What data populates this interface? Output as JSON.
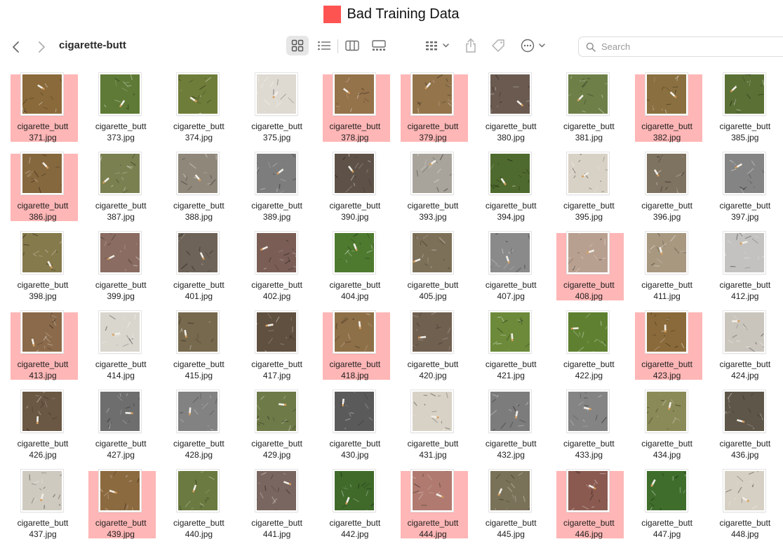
{
  "legend": {
    "label": "Bad Training Data",
    "color": "#fd5452"
  },
  "window": {
    "folder_title": "cigarette-butt",
    "search_placeholder": "Search"
  },
  "toolbar_icons": {
    "back": "chevron-left-icon",
    "forward": "chevron-right-icon",
    "icon_view": "grid-view-icon",
    "list_view": "list-view-icon",
    "column_view": "column-view-icon",
    "gallery_view": "gallery-view-icon",
    "group": "group-icon",
    "share": "share-icon",
    "tag": "tag-icon",
    "more": "ellipsis-icon"
  },
  "colors": {
    "grass": "#5e7a36",
    "dry_grass": "#8f7845",
    "concrete": "#dcd8cf",
    "asphalt": "#7c7c7c",
    "brick": "#8a5c55",
    "dirt": "#8b7a64",
    "gravel": "#7e7260"
  },
  "files": [
    {
      "line1": "cigarette_butt",
      "line2": "371.jpg",
      "bg": "#8a6a3a",
      "bad": true
    },
    {
      "line1": "cigarette_butt",
      "line2": "373.jpg",
      "bg": "#5e7a36",
      "bad": false
    },
    {
      "line1": "cigarette_butt",
      "line2": "374.jpg",
      "bg": "#6f7d3a",
      "bad": false
    },
    {
      "line1": "cigarette_butt",
      "line2": "375.jpg",
      "bg": "#dedad2",
      "bad": false
    },
    {
      "line1": "cigarette_butt",
      "line2": "378.jpg",
      "bg": "#94724a",
      "bad": true
    },
    {
      "line1": "cigarette_butt",
      "line2": "379.jpg",
      "bg": "#93744b",
      "bad": true
    },
    {
      "line1": "cigarette_butt",
      "line2": "380.jpg",
      "bg": "#6a5a50",
      "bad": false
    },
    {
      "line1": "cigarette_butt",
      "line2": "381.jpg",
      "bg": "#6e8048",
      "bad": false
    },
    {
      "line1": "cigarette_butt",
      "line2": "382.jpg",
      "bg": "#8a7040",
      "bad": true
    },
    {
      "line1": "cigarette_butt",
      "line2": "385.jpg",
      "bg": "#5b7035",
      "bad": false
    },
    {
      "line1": "cigarette_butt",
      "line2": "386.jpg",
      "bg": "#86683e",
      "bad": true
    },
    {
      "line1": "cigarette_butt",
      "line2": "387.jpg",
      "bg": "#7a8050",
      "bad": false
    },
    {
      "line1": "cigarette_butt",
      "line2": "388.jpg",
      "bg": "#8f877a",
      "bad": false
    },
    {
      "line1": "cigarette_butt",
      "line2": "389.jpg",
      "bg": "#7d7d7d",
      "bad": false
    },
    {
      "line1": "cigarette_butt",
      "line2": "390.jpg",
      "bg": "#5e5248",
      "bad": false
    },
    {
      "line1": "cigarette_butt",
      "line2": "393.jpg",
      "bg": "#a8a49c",
      "bad": false
    },
    {
      "line1": "cigarette_butt",
      "line2": "394.jpg",
      "bg": "#4f6a2e",
      "bad": false
    },
    {
      "line1": "cigarette_butt",
      "line2": "395.jpg",
      "bg": "#d8d2c6",
      "bad": false
    },
    {
      "line1": "cigarette_butt",
      "line2": "396.jpg",
      "bg": "#7e7260",
      "bad": false
    },
    {
      "line1": "cigarette_butt",
      "line2": "397.jpg",
      "bg": "#848484",
      "bad": false
    },
    {
      "line1": "cigarette_butt",
      "line2": "398.jpg",
      "bg": "#857a4c",
      "bad": false
    },
    {
      "line1": "cigarette_butt",
      "line2": "399.jpg",
      "bg": "#8a6c62",
      "bad": false
    },
    {
      "line1": "cigarette_butt",
      "line2": "401.jpg",
      "bg": "#6e6358",
      "bad": false
    },
    {
      "line1": "cigarette_butt",
      "line2": "402.jpg",
      "bg": "#7a5e56",
      "bad": false
    },
    {
      "line1": "cigarette_butt",
      "line2": "404.jpg",
      "bg": "#4e7a30",
      "bad": false
    },
    {
      "line1": "cigarette_butt",
      "line2": "405.jpg",
      "bg": "#7c7058",
      "bad": false
    },
    {
      "line1": "cigarette_butt",
      "line2": "407.jpg",
      "bg": "#8a8a8a",
      "bad": false
    },
    {
      "line1": "cigarette_butt",
      "line2": "408.jpg",
      "bg": "#b8a090",
      "bad": true
    },
    {
      "line1": "cigarette_butt",
      "line2": "411.jpg",
      "bg": "#a89880",
      "bad": false
    },
    {
      "line1": "cigarette_butt",
      "line2": "412.jpg",
      "bg": "#c4c2c0",
      "bad": false
    },
    {
      "line1": "cigarette_butt",
      "line2": "413.jpg",
      "bg": "#8a6a4a",
      "bad": true
    },
    {
      "line1": "cigarette_butt",
      "line2": "414.jpg",
      "bg": "#d9d6ce",
      "bad": false
    },
    {
      "line1": "cigarette_butt",
      "line2": "415.jpg",
      "bg": "#76694e",
      "bad": false
    },
    {
      "line1": "cigarette_butt",
      "line2": "417.jpg",
      "bg": "#605040",
      "bad": false
    },
    {
      "line1": "cigarette_butt",
      "line2": "418.jpg",
      "bg": "#8e7048",
      "bad": true
    },
    {
      "line1": "cigarette_butt",
      "line2": "420.jpg",
      "bg": "#706050",
      "bad": false
    },
    {
      "line1": "cigarette_butt",
      "line2": "421.jpg",
      "bg": "#6c8a3a",
      "bad": false
    },
    {
      "line1": "cigarette_butt",
      "line2": "422.jpg",
      "bg": "#5e8030",
      "bad": false
    },
    {
      "line1": "cigarette_butt",
      "line2": "423.jpg",
      "bg": "#8a6a3a",
      "bad": true
    },
    {
      "line1": "cigarette_butt",
      "line2": "424.jpg",
      "bg": "#c9c5bd",
      "bad": false
    },
    {
      "line1": "cigarette_butt",
      "line2": "426.jpg",
      "bg": "#6a5844",
      "bad": false
    },
    {
      "line1": "cigarette_butt",
      "line2": "427.jpg",
      "bg": "#6e6e6e",
      "bad": false
    },
    {
      "line1": "cigarette_butt",
      "line2": "428.jpg",
      "bg": "#828282",
      "bad": false
    },
    {
      "line1": "cigarette_butt",
      "line2": "429.jpg",
      "bg": "#6e7a48",
      "bad": false
    },
    {
      "line1": "cigarette_butt",
      "line2": "430.jpg",
      "bg": "#5a5a5a",
      "bad": false
    },
    {
      "line1": "cigarette_butt",
      "line2": "431.jpg",
      "bg": "#d8d2c6",
      "bad": false
    },
    {
      "line1": "cigarette_butt",
      "line2": "432.jpg",
      "bg": "#7c7c7c",
      "bad": false
    },
    {
      "line1": "cigarette_butt",
      "line2": "433.jpg",
      "bg": "#848484",
      "bad": false
    },
    {
      "line1": "cigarette_butt",
      "line2": "434.jpg",
      "bg": "#8a8a58",
      "bad": false
    },
    {
      "line1": "cigarette_butt",
      "line2": "436.jpg",
      "bg": "#5e5648",
      "bad": false
    },
    {
      "line1": "cigarette_butt",
      "line2": "437.jpg",
      "bg": "#cfcac0",
      "bad": false
    },
    {
      "line1": "cigarette_butt",
      "line2": "439.jpg",
      "bg": "#8c6a40",
      "bad": true
    },
    {
      "line1": "cigarette_butt",
      "line2": "440.jpg",
      "bg": "#6a7a40",
      "bad": false
    },
    {
      "line1": "cigarette_butt",
      "line2": "441.jpg",
      "bg": "#7a6660",
      "bad": false
    },
    {
      "line1": "cigarette_butt",
      "line2": "442.jpg",
      "bg": "#3f6a2a",
      "bad": false
    },
    {
      "line1": "cigarette_butt",
      "line2": "444.jpg",
      "bg": "#b07a70",
      "bad": true
    },
    {
      "line1": "cigarette_butt",
      "line2": "445.jpg",
      "bg": "#7a7258",
      "bad": false
    },
    {
      "line1": "cigarette_butt",
      "line2": "446.jpg",
      "bg": "#8a5a50",
      "bad": true
    },
    {
      "line1": "cigarette_butt",
      "line2": "447.jpg",
      "bg": "#3f6e2c",
      "bad": false
    },
    {
      "line1": "cigarette_butt",
      "line2": "448.jpg",
      "bg": "#d6d0c4",
      "bad": false
    }
  ]
}
